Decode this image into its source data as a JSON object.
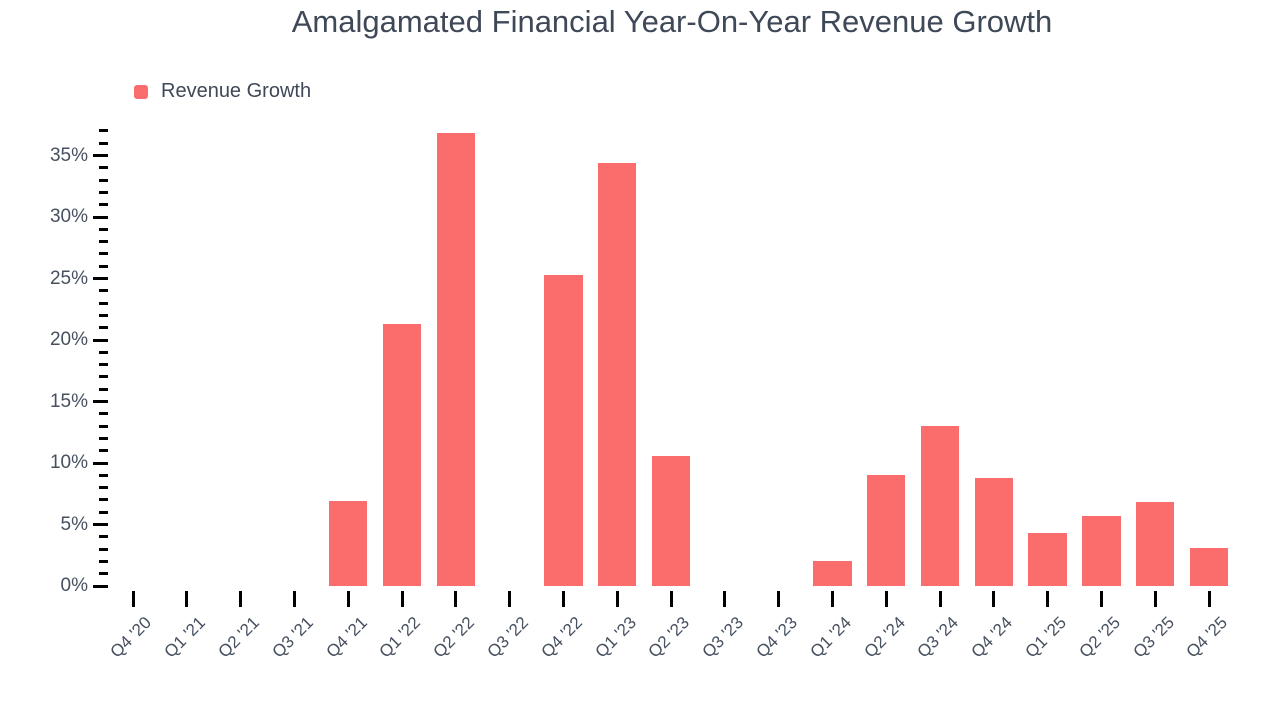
{
  "title": "Amalgamated Financial Year-On-Year Revenue Growth",
  "legend": {
    "label": "Revenue Growth"
  },
  "colors": {
    "bar": "#fb6d6c",
    "title_text": "#3f4857",
    "axis_text": "#46505f",
    "tick": "#000000",
    "background": "#ffffff"
  },
  "chart_data": {
    "type": "bar",
    "title": "Amalgamated Financial Year-On-Year Revenue Growth",
    "series_name": "Revenue Growth",
    "legend_entries": [
      "Revenue Growth"
    ],
    "legend_position": "top-left",
    "categories": [
      "Q4 '20",
      "Q1 '21",
      "Q2 '21",
      "Q3 '21",
      "Q4 '21",
      "Q1 '22",
      "Q2 '22",
      "Q3 '22",
      "Q4 '22",
      "Q1 '23",
      "Q2 '23",
      "Q3 '23",
      "Q4 '23",
      "Q1 '24",
      "Q2 '24",
      "Q3 '24",
      "Q4 '24",
      "Q1 '25",
      "Q2 '25",
      "Q3 '25",
      "Q4 '25"
    ],
    "values": [
      0,
      0,
      0,
      0,
      6.9,
      21.3,
      36.8,
      0,
      25.3,
      34.4,
      10.6,
      0,
      0,
      2.0,
      9.0,
      13.0,
      8.8,
      4.3,
      5.7,
      6.8,
      3.1
    ],
    "xlabel": "",
    "ylabel": "",
    "ylim": [
      0,
      37
    ],
    "y_major_step": 5,
    "y_minor_step": 1,
    "y_tick_suffix": "%",
    "grid": false,
    "bar_color": "#fb6d6c"
  }
}
